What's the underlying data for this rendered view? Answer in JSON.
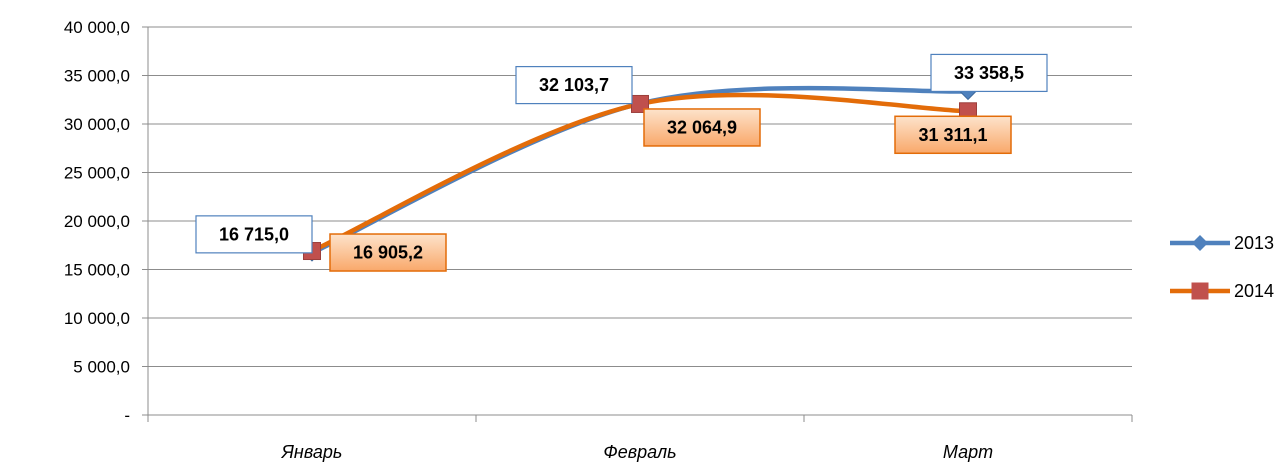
{
  "chart_data": {
    "type": "line",
    "categories": [
      "Январь",
      "Февраль",
      "Март"
    ],
    "y_ticks": [
      "-",
      "5 000,0",
      "10 000,0",
      "15 000,0",
      "20 000,0",
      "25 000,0",
      "30 000,0",
      "35 000,0",
      "40 000,0"
    ],
    "ylim": [
      0,
      40000
    ],
    "grid": true,
    "smooth": true,
    "legend_position": "right",
    "series": [
      {
        "name": "2013",
        "values": [
          16715.0,
          32103.7,
          33358.5
        ],
        "labels": [
          "16 715,0",
          "32 103,7",
          "33 358,5"
        ],
        "color": "#4F81BD",
        "marker": "diamond",
        "label_style": "outlined"
      },
      {
        "name": "2014",
        "values": [
          16905.2,
          32064.9,
          31311.1
        ],
        "labels": [
          "16 905,2",
          "32 064,9",
          "31 311,1"
        ],
        "color": "#E36C09",
        "marker_color": "#C0504D",
        "marker": "square",
        "label_style": "filled"
      }
    ]
  }
}
